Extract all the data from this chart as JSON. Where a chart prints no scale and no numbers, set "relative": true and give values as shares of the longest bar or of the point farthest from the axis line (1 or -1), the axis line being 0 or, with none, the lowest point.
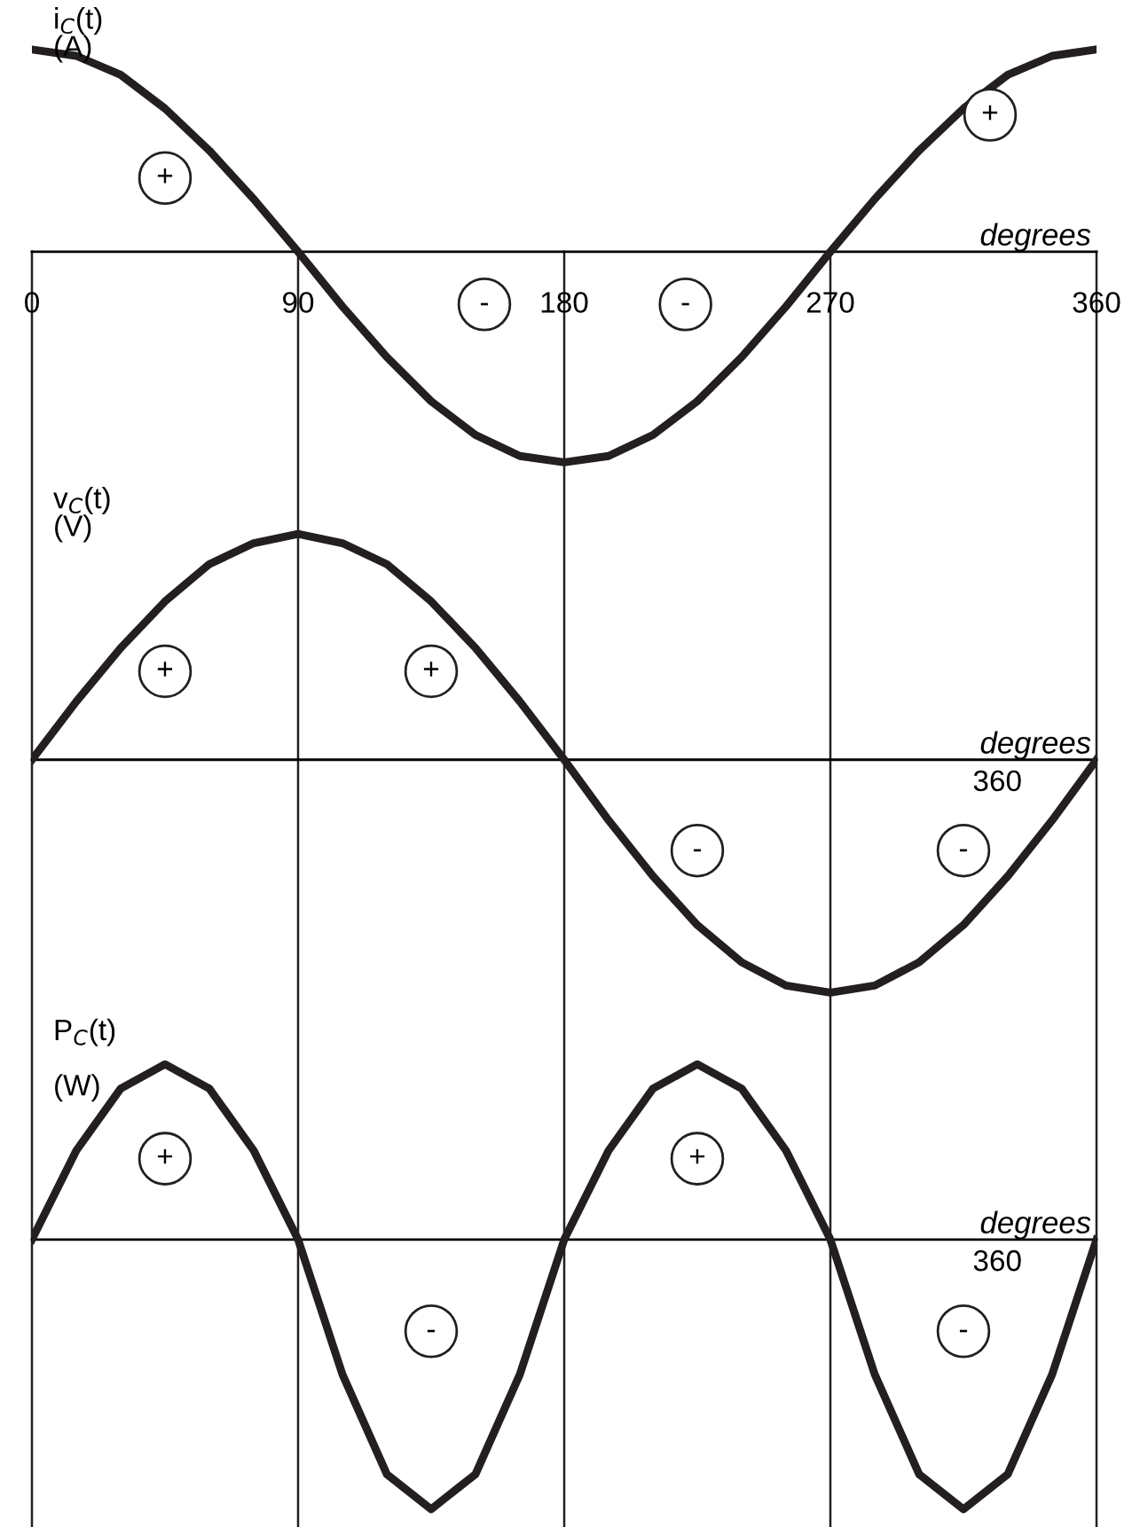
{
  "chart_data": [
    {
      "type": "line",
      "relative": true,
      "ylabel": "i$_{C}$(t)\n(A)",
      "xlabel": "degrees",
      "grid": "x",
      "tick_labels": "x",
      "marker": "none",
      "line_style": "solid",
      "x": [
        0,
        15,
        30,
        45,
        60,
        75,
        90,
        105,
        120,
        135,
        150,
        165,
        180,
        195,
        210,
        225,
        240,
        255,
        270,
        285,
        300,
        315,
        330,
        345,
        360
      ],
      "xlim": [
        0,
        360
      ],
      "xticks": [
        0,
        90,
        180,
        270,
        360
      ],
      "series": [
        {
          "color": "#231f20",
          "values": [
            0.96,
            0.93,
            0.84,
            0.68,
            0.48,
            0.25,
            0,
            -0.26,
            -0.5,
            -0.71,
            -0.87,
            -0.97,
            -1,
            -0.97,
            -0.87,
            -0.71,
            -0.5,
            -0.26,
            0,
            0.25,
            0.48,
            0.68,
            0.84,
            0.93,
            0.96
          ]
        }
      ],
      "annotations": [
        {
          "text": "+",
          "x": 45,
          "y": 0.35
        },
        {
          "text": "-",
          "x": 153,
          "y": -0.25
        },
        {
          "text": "-",
          "x": 221,
          "y": -0.25
        },
        {
          "text": "+",
          "x": 324,
          "y": 0.65
        }
      ]
    },
    {
      "type": "line",
      "relative": true,
      "ylabel": "v$_{C}$(t)\n(V)",
      "xlabel": "degrees",
      "tick_labels": false,
      "marker": "none",
      "line_style": "solid",
      "categories": [
        null,
        null,
        null,
        null,
        null,
        null,
        null,
        null,
        null,
        null,
        null,
        null,
        null,
        null,
        null,
        null,
        null,
        null,
        null,
        null,
        null,
        null,
        null,
        null,
        null
      ],
      "series": [
        {
          "color": "#231f20",
          "values": [
            0,
            0.25,
            0.48,
            0.68,
            0.84,
            0.93,
            0.97,
            0.93,
            0.84,
            0.68,
            0.48,
            0.25,
            0,
            -0.26,
            -0.5,
            -0.71,
            -0.87,
            -0.97,
            -1,
            -0.97,
            -0.87,
            -0.71,
            -0.5,
            -0.26,
            0
          ]
        }
      ],
      "annotations": [
        {
          "text": "+",
          "y": 0.38
        },
        {
          "text": "+",
          "y": 0.38
        },
        {
          "text": "-",
          "y": -0.39
        },
        {
          "text": "-",
          "y": -0.39
        },
        "360"
      ]
    },
    {
      "type": "line",
      "relative": true,
      "ylabel": "P$_{C}$(t)\n\n(W)",
      "xlabel": "degrees",
      "tick_labels": false,
      "marker": "none",
      "line_style": "solid",
      "categories": [
        null,
        null,
        null,
        null,
        null,
        null,
        null,
        null,
        null,
        null,
        null,
        null,
        null,
        null,
        null,
        null,
        null,
        null,
        null,
        null,
        null,
        null,
        null,
        null,
        null
      ],
      "series": [
        {
          "color": "#231f20",
          "values": [
            0,
            0.33,
            0.56,
            0.65,
            0.56,
            0.33,
            0,
            -0.5,
            -0.87,
            -1,
            -0.87,
            -0.5,
            0,
            0.33,
            0.56,
            0.65,
            0.56,
            0.33,
            0,
            -0.5,
            -0.87,
            -1,
            -0.87,
            -0.5,
            0
          ]
        }
      ],
      "annotations": [
        {
          "text": "+",
          "y": 0.3
        },
        {
          "text": "-",
          "y": -0.34
        },
        {
          "text": "+",
          "y": 0.3
        },
        {
          "text": "-",
          "y": -0.34
        },
        "360"
      ]
    }
  ]
}
